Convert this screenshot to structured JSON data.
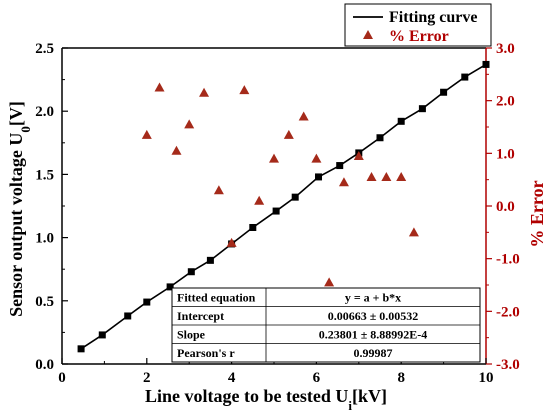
{
  "chart_data": {
    "type": "scatter",
    "xlabel_main": "Line voltage to be tested U",
    "xlabel_sub": "i",
    "xlabel_unit": "[kV]",
    "ylabel_main": "Sensor output voltage U",
    "ylabel_sub": "0",
    "ylabel_unit": "[V]",
    "y2label": "% Error",
    "xlim": [
      0,
      10
    ],
    "ylim": [
      0,
      2.5
    ],
    "y2lim": [
      -3,
      3
    ],
    "x_ticks": [
      "0",
      "2",
      "4",
      "6",
      "8",
      "10"
    ],
    "y_ticks": [
      "0.0",
      "0.5",
      "1.0",
      "1.5",
      "2.0",
      "2.5"
    ],
    "y2_ticks": [
      "-3.0",
      "-2.0",
      "-1.0",
      "0.0",
      "1.0",
      "2.0",
      "3.0"
    ],
    "colors": {
      "fit": "#000000",
      "error": "#a52a1a",
      "right_axis": "#b00000"
    },
    "legend": {
      "position": "top-right",
      "fit_label": "Fitting curve",
      "error_label": "% Error"
    },
    "series": [
      {
        "name": "Fitting curve",
        "x": [
          0.45,
          0.95,
          1.55,
          2.0,
          2.55,
          3.05,
          3.5,
          4.0,
          4.5,
          5.05,
          5.5,
          6.05,
          6.55,
          7.0,
          7.5,
          8.0,
          8.5,
          9.0,
          9.5,
          10.0
        ],
        "y": [
          0.12,
          0.23,
          0.38,
          0.49,
          0.61,
          0.73,
          0.82,
          0.95,
          1.08,
          1.21,
          1.32,
          1.48,
          1.57,
          1.67,
          1.79,
          1.92,
          2.02,
          2.15,
          2.27,
          2.37
        ]
      },
      {
        "name": "% Error",
        "x": [
          2.0,
          2.3,
          2.7,
          3.0,
          3.35,
          3.7,
          4.0,
          4.3,
          4.65,
          5.0,
          5.35,
          5.7,
          6.0,
          6.3,
          6.65,
          7.0,
          7.3,
          7.65,
          8.0,
          8.3
        ],
        "y": [
          1.35,
          2.25,
          1.05,
          1.55,
          2.15,
          0.3,
          -0.7,
          2.2,
          0.1,
          0.9,
          1.35,
          1.7,
          0.9,
          -1.45,
          0.45,
          0.95,
          0.55,
          0.55,
          0.55,
          -0.5
        ]
      }
    ],
    "fit_stats": {
      "rows": [
        [
          "Fitted equation",
          "y = a + b*x"
        ],
        [
          "Intercept",
          "0.00663 ± 0.00532"
        ],
        [
          "Slope",
          "0.23801 ± 8.88992E-4"
        ],
        [
          "Pearson's r",
          "0.99987"
        ]
      ]
    }
  }
}
